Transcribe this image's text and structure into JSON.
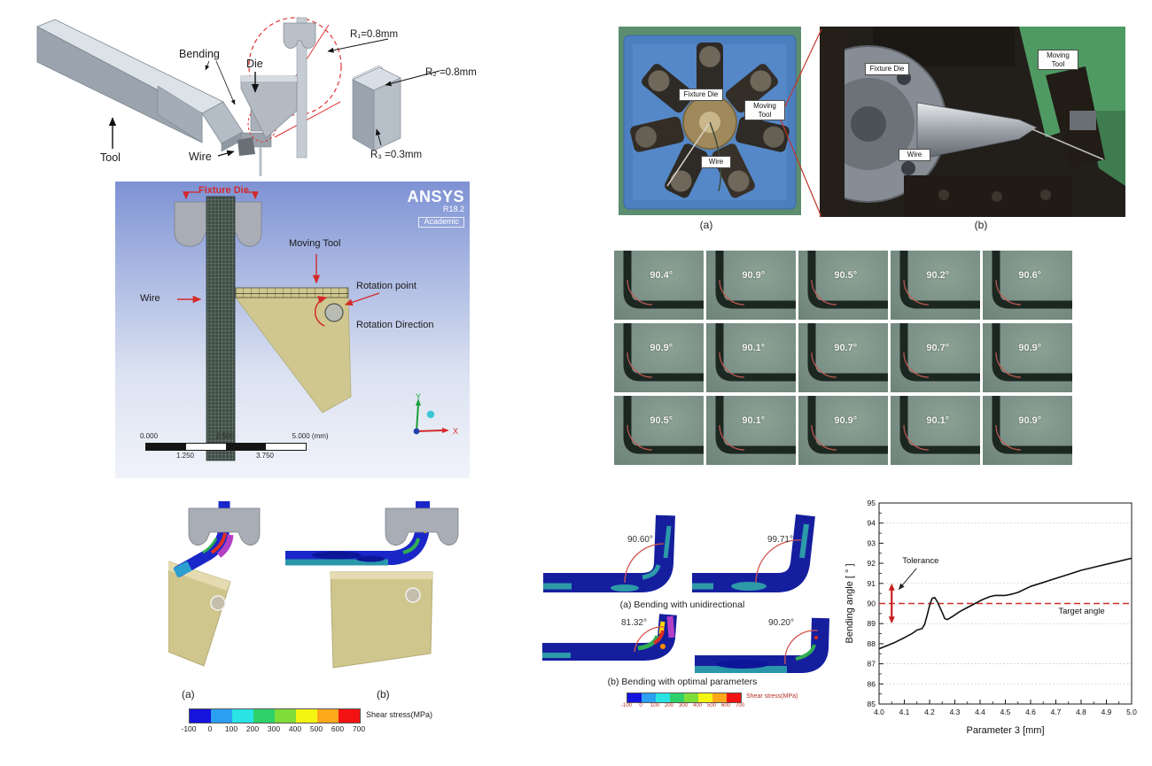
{
  "cad": {
    "labels": {
      "bending": "Bending",
      "die": "Die",
      "tool": "Tool",
      "wire": "Wire"
    },
    "radii": {
      "r1": "R₁=0.8mm",
      "r2": "R₂ =0.8mm",
      "r3": "R₃ =0.3mm"
    }
  },
  "ansys": {
    "logo": {
      "name": "ANSYS",
      "version": "R18.2",
      "edition": "Academic"
    },
    "labels": {
      "fixture_die": "Fixture Die",
      "moving_tool": "Moving Tool",
      "wire": "Wire",
      "rotation_point": "Rotation point",
      "rotation_direction": "Rotation Direction"
    },
    "scale": {
      "t0": "0.000",
      "t1": "2.500",
      "t2": "5.000 (mm)",
      "b0": "1.250",
      "b1": "3.750"
    },
    "axes": {
      "x": "X",
      "y": "Y"
    }
  },
  "machine": {
    "a": {
      "fixture": "Fixture Die",
      "moving": "Moving Tool",
      "wire": "Wire",
      "caption": "(a)"
    },
    "b": {
      "fixture": "Fixture Die",
      "moving": "Moving Tool",
      "wire": "Wire",
      "caption": "(b)"
    }
  },
  "grid": {
    "angles": [
      "90.4°",
      "90.9°",
      "90.5°",
      "90.2°",
      "90.6°",
      "90.9°",
      "90.1°",
      "90.7°",
      "90.7°",
      "90.9°",
      "90.5°",
      "90.1°",
      "90.9°",
      "90.1°",
      "90.9°"
    ]
  },
  "fea_compare": {
    "caption_a": "(a)",
    "caption_b": "(b)"
  },
  "colorbar": {
    "label": "Shear stress(MPa)",
    "ticks": [
      "-100",
      "0",
      "100",
      "200",
      "300",
      "400",
      "500",
      "600",
      "700"
    ],
    "colors": [
      "#1414dc",
      "#2b9ff2",
      "#2ae3e3",
      "#2fd26a",
      "#7fdd3a",
      "#f5f513",
      "#ffa81c",
      "#f31212"
    ]
  },
  "fea_mid": {
    "a1": "90.60°",
    "a2": "99.71°",
    "b1": "81.32°",
    "b2": "90.20°",
    "caption_a": "(a) Bending with unidirectional",
    "caption_b": "(b) Bending with optimal parameters",
    "colorbar_label": "Shear stress(MPa)"
  },
  "chart_data": {
    "type": "line",
    "xlabel": "Parameter 3 [mm]",
    "ylabel": "Bending angle [ ° ]",
    "xlim": [
      4.0,
      5.0
    ],
    "ylim": [
      85,
      95
    ],
    "xticks": [
      4.0,
      4.1,
      4.2,
      4.3,
      4.4,
      4.5,
      4.6,
      4.7,
      4.8,
      4.9,
      5.0
    ],
    "yticks": [
      85,
      86,
      87,
      88,
      89,
      90,
      91,
      92,
      93,
      94,
      95
    ],
    "gridlines_y": [
      86,
      87,
      89,
      91,
      94
    ],
    "grid": "dotted horizontal",
    "legend": "none",
    "target_angle": 90,
    "target_label": "Target angle",
    "tolerance": {
      "x": 4.05,
      "from": 89,
      "to": 91,
      "label": "Tolerance"
    },
    "series": [
      {
        "name": "Bending angle vs Parameter 3",
        "points": [
          [
            4.0,
            87.75
          ],
          [
            4.03,
            87.9
          ],
          [
            4.06,
            88.05
          ],
          [
            4.1,
            88.3
          ],
          [
            4.13,
            88.5
          ],
          [
            4.15,
            88.68
          ],
          [
            4.17,
            88.75
          ],
          [
            4.18,
            88.95
          ],
          [
            4.19,
            89.4
          ],
          [
            4.2,
            89.9
          ],
          [
            4.21,
            90.25
          ],
          [
            4.22,
            90.3
          ],
          [
            4.23,
            90.1
          ],
          [
            4.25,
            89.55
          ],
          [
            4.26,
            89.25
          ],
          [
            4.27,
            89.2
          ],
          [
            4.29,
            89.35
          ],
          [
            4.32,
            89.6
          ],
          [
            4.35,
            89.8
          ],
          [
            4.38,
            90.0
          ],
          [
            4.41,
            90.2
          ],
          [
            4.44,
            90.35
          ],
          [
            4.46,
            90.4
          ],
          [
            4.5,
            90.4
          ],
          [
            4.52,
            90.45
          ],
          [
            4.55,
            90.55
          ],
          [
            4.6,
            90.85
          ],
          [
            4.65,
            91.05
          ],
          [
            4.7,
            91.25
          ],
          [
            4.75,
            91.45
          ],
          [
            4.8,
            91.65
          ],
          [
            4.85,
            91.8
          ],
          [
            4.9,
            91.95
          ],
          [
            4.95,
            92.1
          ],
          [
            5.0,
            92.25
          ]
        ]
      }
    ]
  }
}
